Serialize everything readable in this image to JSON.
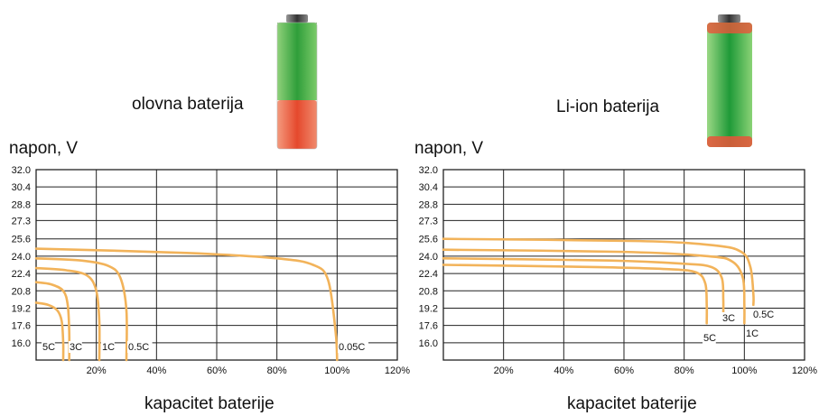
{
  "chart_data": [
    {
      "type": "line",
      "title": "olovna baterija",
      "ylabel": "napon, V",
      "xlabel": "kapacitet baterije",
      "y_ticks": [
        "32.0",
        "30.4",
        "28.8",
        "27.3",
        "25.6",
        "24.0",
        "22.4",
        "20.8",
        "19.2",
        "17.6",
        "16.0"
      ],
      "x_ticks": [
        "20%",
        "40%",
        "60%",
        "80%",
        "100%",
        "120%"
      ],
      "xlim": [
        0,
        120
      ],
      "ylim": [
        14.4,
        32.0
      ],
      "grid": true,
      "battery_icon": "lead-acid-battery-icon",
      "battery_colors": {
        "charged": "#3aaa35",
        "empty": "#e8553a"
      },
      "series": [
        {
          "name": "5C",
          "points": [
            [
              0,
              19.7
            ],
            [
              4,
              19.5
            ],
            [
              7,
              19.0
            ],
            [
              8.5,
              18.0
            ],
            [
              9,
              16.0
            ],
            [
              9,
              14.4
            ]
          ]
        },
        {
          "name": "3C",
          "points": [
            [
              0,
              21.6
            ],
            [
              5,
              21.4
            ],
            [
              9,
              20.8
            ],
            [
              10.5,
              19.5
            ],
            [
              11,
              17.0
            ],
            [
              11,
              14.4
            ]
          ]
        },
        {
          "name": "1C",
          "points": [
            [
              0,
              22.9
            ],
            [
              10,
              22.7
            ],
            [
              17,
              22.2
            ],
            [
              20,
              20.8
            ],
            [
              21,
              18.0
            ],
            [
              21,
              14.4
            ]
          ]
        },
        {
          "name": "0.5C",
          "points": [
            [
              0,
              23.8
            ],
            [
              15,
              23.6
            ],
            [
              24,
              23.1
            ],
            [
              28,
              22.0
            ],
            [
              30,
              19.0
            ],
            [
              30,
              14.4
            ]
          ]
        },
        {
          "name": "0.05C",
          "points": [
            [
              0,
              24.7
            ],
            [
              50,
              24.3
            ],
            [
              80,
              23.8
            ],
            [
              92,
              23.2
            ],
            [
              97,
              21.8
            ],
            [
              99.5,
              17.0
            ],
            [
              100,
              14.4
            ]
          ]
        }
      ]
    },
    {
      "type": "line",
      "title": "Li-ion baterija",
      "ylabel": "napon, V",
      "xlabel": "kapacitet baterije",
      "y_ticks": [
        "32.0",
        "30.4",
        "28.8",
        "27.3",
        "25.6",
        "24.0",
        "22.4",
        "20.8",
        "19.2",
        "17.6",
        "16.0"
      ],
      "x_ticks": [
        "20%",
        "40%",
        "60%",
        "80%",
        "100%",
        "120%"
      ],
      "xlim": [
        0,
        120
      ],
      "ylim": [
        14.4,
        32.0
      ],
      "grid": true,
      "battery_icon": "li-ion-battery-icon",
      "battery_colors": {
        "charged": "#3aaa35",
        "edge": "#e8553a"
      },
      "series": [
        {
          "name": "5C",
          "points": [
            [
              0,
              23.2
            ],
            [
              50,
              23.0
            ],
            [
              75,
              22.8
            ],
            [
              84,
              22.5
            ],
            [
              87,
              21.5
            ],
            [
              87.5,
              19.5
            ],
            [
              87.5,
              17.8
            ]
          ]
        },
        {
          "name": "3C",
          "points": [
            [
              0,
              23.8
            ],
            [
              55,
              23.6
            ],
            [
              80,
              23.3
            ],
            [
              89,
              23.0
            ],
            [
              92.5,
              22.0
            ],
            [
              93,
              20.0
            ],
            [
              93,
              18.7
            ]
          ]
        },
        {
          "name": "1C",
          "points": [
            [
              0,
              24.6
            ],
            [
              60,
              24.4
            ],
            [
              88,
              24.0
            ],
            [
              96,
              23.5
            ],
            [
              99.5,
              22.0
            ],
            [
              100,
              19.5
            ],
            [
              100,
              17.8
            ]
          ]
        },
        {
          "name": "0.5C",
          "points": [
            [
              0,
              25.6
            ],
            [
              65,
              25.4
            ],
            [
              90,
              25.0
            ],
            [
              99,
              24.4
            ],
            [
              102,
              23.0
            ],
            [
              103,
              20.5
            ],
            [
              103,
              19.5
            ]
          ]
        }
      ]
    }
  ]
}
